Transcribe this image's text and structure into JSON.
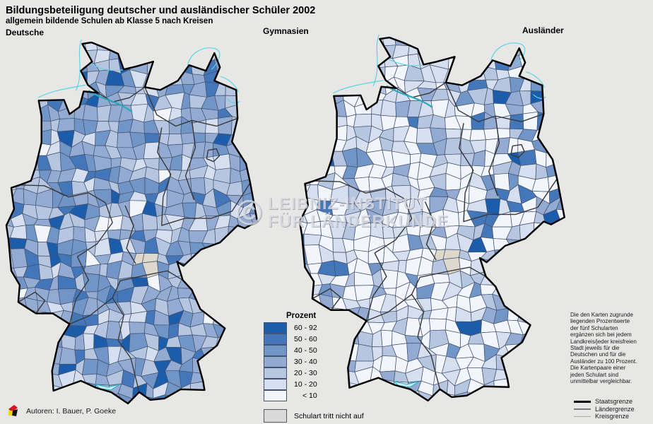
{
  "title": "Bildungsbeteiligung deutscher und ausländischer Schüler 2002",
  "subtitle": "allgemein bildende Schulen ab Klasse 5 nach Kreisen",
  "maps": {
    "left_label": "Deutsche",
    "center_label": "Gymnasien",
    "right_label": "Ausländer"
  },
  "legend": {
    "title": "Prozent",
    "classes": [
      {
        "label": "60 - 92",
        "color": "#1b5cab"
      },
      {
        "label": "50 - 60",
        "color": "#4377b9"
      },
      {
        "label": "40 - 50",
        "color": "#7195c7"
      },
      {
        "label": "30 - 40",
        "color": "#93aad2"
      },
      {
        "label": "20 - 30",
        "color": "#b6c5e0"
      },
      {
        "label": "10 - 20",
        "color": "#d6dfef"
      },
      {
        "label": "< 10",
        "color": "#f2f5fb"
      }
    ],
    "no_school": {
      "label": "Schulart tritt nicht auf",
      "color": "#d9d9d9"
    }
  },
  "note": "Die den Karten zugrunde\nliegenden Prozentwerte\nder fünf Schularten\nergänzen sich bei jedem\nLandkreis/jeder kreisfreien\nStadt jeweils für die\nDeutschen und für die\nAusländer zu 100 Prozent.\nDie Kartenpaare einer\njeden Schulart sind\nunmittelbar vergleichbar.",
  "boundary_legend": [
    {
      "label": "Staatsgrenze"
    },
    {
      "label": "Ländergrenze"
    },
    {
      "label": "Kreisgrenze"
    }
  ],
  "watermark": {
    "symbol": "©",
    "line1": "LEIBNIZ-INSTITUT",
    "line2": "FÜR LÄNDERKUNDE"
  },
  "authors": "Autoren: I. Bauer, P. Goeke",
  "map_style": {
    "background": "#e7e7e6",
    "district_border": "#44536e",
    "state_border": "#3a3a3a",
    "country_border": "#000000",
    "coast_water": "#5fd4e6",
    "river": "#2aa9bd",
    "lake_fill": "#bdeef5",
    "no_data_area": "#ddd8cb"
  }
}
